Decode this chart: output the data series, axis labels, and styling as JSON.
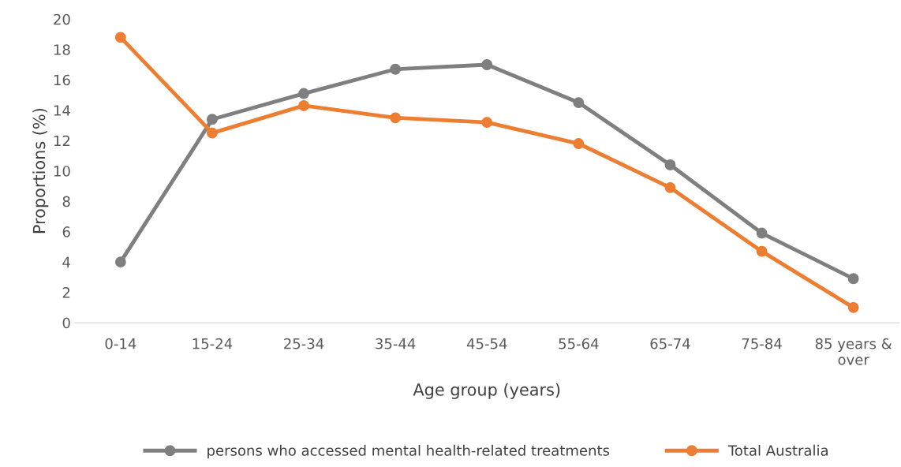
{
  "chart_data": {
    "type": "line",
    "xlabel": "Age group (years)",
    "ylabel": "Proportions (%)",
    "categories": [
      "0-14",
      "15-24",
      "25-34",
      "35-44",
      "45-54",
      "55-64",
      "65-74",
      "75-84",
      "85 years & over"
    ],
    "series": [
      {
        "name": "persons who accessed mental health-related treatments",
        "color": "#7f7f7f",
        "values": [
          4.0,
          13.4,
          15.1,
          16.7,
          17.0,
          14.5,
          10.4,
          5.9,
          2.9
        ]
      },
      {
        "name": "Total Australia",
        "color": "#ed7d31",
        "values": [
          18.8,
          12.5,
          14.3,
          13.5,
          13.2,
          11.8,
          8.9,
          4.7,
          1.0
        ]
      }
    ],
    "ylim": [
      0,
      20
    ],
    "yticks": [
      0,
      2,
      4,
      6,
      8,
      10,
      12,
      14,
      16,
      18,
      20
    ],
    "grid": false,
    "legend": "bottom",
    "marker": "circle",
    "line_style": "solid"
  }
}
